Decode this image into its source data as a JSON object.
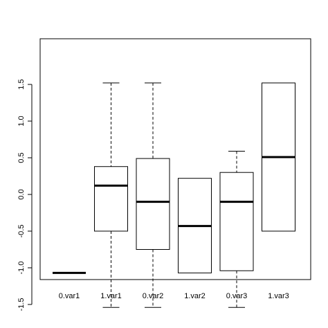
{
  "chart_data": {
    "type": "boxplot",
    "title": "",
    "xlabel": "",
    "ylabel": "",
    "ylim": [
      -1.62,
      1.65
    ],
    "y_ticks": [
      -1.5,
      -1.0,
      -0.5,
      0.0,
      0.5,
      1.0,
      1.5
    ],
    "y_tick_labels": [
      "-1.5",
      "-1.0",
      "-0.5",
      "0.0",
      "0.5",
      "1.0",
      "1.5"
    ],
    "grid": false,
    "categories": [
      "0.var1",
      "1.var1",
      "0.var2",
      "1.var2",
      "0.var3",
      "1.var3"
    ],
    "boxes": [
      {
        "min": -1.07,
        "q1": -1.07,
        "median": -1.07,
        "q3": -1.07,
        "max": -1.07
      },
      {
        "min": -1.54,
        "q1": -0.5,
        "median": 0.12,
        "q3": 0.38,
        "max": 1.52
      },
      {
        "min": -1.54,
        "q1": -0.75,
        "median": -0.1,
        "q3": 0.49,
        "max": 1.52
      },
      {
        "min": -1.07,
        "q1": -1.07,
        "median": -0.43,
        "q3": 0.22,
        "max": 0.22
      },
      {
        "min": -1.54,
        "q1": -1.04,
        "median": -0.1,
        "q3": 0.3,
        "max": 0.59
      },
      {
        "min": -0.5,
        "q1": -0.5,
        "median": 0.51,
        "q3": 1.52,
        "max": 1.52
      }
    ],
    "colors": {
      "stroke": "#000000",
      "fill": "#ffffff"
    }
  }
}
